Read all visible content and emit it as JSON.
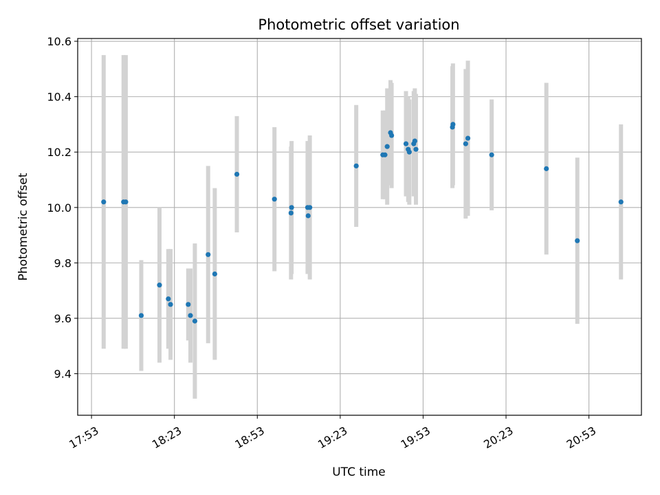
{
  "chart_data": {
    "type": "scatter",
    "title": "Photometric offset variation",
    "xlabel": "UTC time",
    "ylabel": "Photometric offset",
    "grid": true,
    "xlim": [
      "17:48",
      "21:12"
    ],
    "ylim": [
      9.25,
      10.61
    ],
    "x_ticks": [
      "17:53",
      "18:23",
      "18:53",
      "19:23",
      "19:53",
      "20:23",
      "20:53"
    ],
    "y_ticks": [
      9.4,
      9.6,
      9.8,
      10.0,
      10.2,
      10.4,
      10.6
    ],
    "y_tick_labels": [
      "9.4",
      "9.6",
      "9.8",
      "10.0",
      "10.2",
      "10.4",
      "10.6"
    ],
    "point_color": "#1f77b4",
    "errorbar_color": "#d3d3d3",
    "points": [
      {
        "t": "17:57:24",
        "y": 10.02,
        "err": 0.53
      },
      {
        "t": "18:04:36",
        "y": 10.02,
        "err": 0.53
      },
      {
        "t": "18:05:24",
        "y": 10.02,
        "err": 0.53
      },
      {
        "t": "18:11:00",
        "y": 9.61,
        "err": 0.2
      },
      {
        "t": "18:17:36",
        "y": 9.72,
        "err": 0.28
      },
      {
        "t": "18:20:48",
        "y": 9.67,
        "err": 0.18
      },
      {
        "t": "18:21:36",
        "y": 9.65,
        "err": 0.2
      },
      {
        "t": "18:28:00",
        "y": 9.65,
        "err": 0.13
      },
      {
        "t": "18:28:48",
        "y": 9.61,
        "err": 0.17
      },
      {
        "t": "18:30:24",
        "y": 9.59,
        "err": 0.28
      },
      {
        "t": "18:35:12",
        "y": 9.83,
        "err": 0.32
      },
      {
        "t": "18:37:36",
        "y": 9.76,
        "err": 0.31
      },
      {
        "t": "18:45:36",
        "y": 10.12,
        "err": 0.21
      },
      {
        "t": "18:59:12",
        "y": 10.03,
        "err": 0.26
      },
      {
        "t": "19:05:12",
        "y": 9.98,
        "err": 0.24
      },
      {
        "t": "19:05:24",
        "y": 10.0,
        "err": 0.24
      },
      {
        "t": "19:11:12",
        "y": 10.0,
        "err": 0.24
      },
      {
        "t": "19:11:24",
        "y": 9.97,
        "err": 0.21
      },
      {
        "t": "19:12:00",
        "y": 10.0,
        "err": 0.26
      },
      {
        "t": "19:28:48",
        "y": 10.15,
        "err": 0.22
      },
      {
        "t": "19:38:24",
        "y": 10.19,
        "err": 0.16
      },
      {
        "t": "19:39:12",
        "y": 10.19,
        "err": 0.16
      },
      {
        "t": "19:40:00",
        "y": 10.22,
        "err": 0.21
      },
      {
        "t": "19:41:12",
        "y": 10.27,
        "err": 0.19
      },
      {
        "t": "19:41:36",
        "y": 10.26,
        "err": 0.19
      },
      {
        "t": "19:46:48",
        "y": 10.23,
        "err": 0.19
      },
      {
        "t": "19:47:36",
        "y": 10.21,
        "err": 0.19
      },
      {
        "t": "19:48:00",
        "y": 10.2,
        "err": 0.19
      },
      {
        "t": "19:49:36",
        "y": 10.23,
        "err": 0.19
      },
      {
        "t": "19:50:00",
        "y": 10.24,
        "err": 0.19
      },
      {
        "t": "19:50:24",
        "y": 10.21,
        "err": 0.2
      },
      {
        "t": "20:03:36",
        "y": 10.29,
        "err": 0.22
      },
      {
        "t": "20:03:48",
        "y": 10.3,
        "err": 0.22
      },
      {
        "t": "20:08:24",
        "y": 10.23,
        "err": 0.27
      },
      {
        "t": "20:09:12",
        "y": 10.25,
        "err": 0.28
      },
      {
        "t": "20:17:48",
        "y": 10.19,
        "err": 0.2
      },
      {
        "t": "20:37:36",
        "y": 10.14,
        "err": 0.31
      },
      {
        "t": "20:48:48",
        "y": 9.88,
        "err": 0.3
      },
      {
        "t": "21:04:36",
        "y": 10.02,
        "err": 0.28
      }
    ]
  }
}
